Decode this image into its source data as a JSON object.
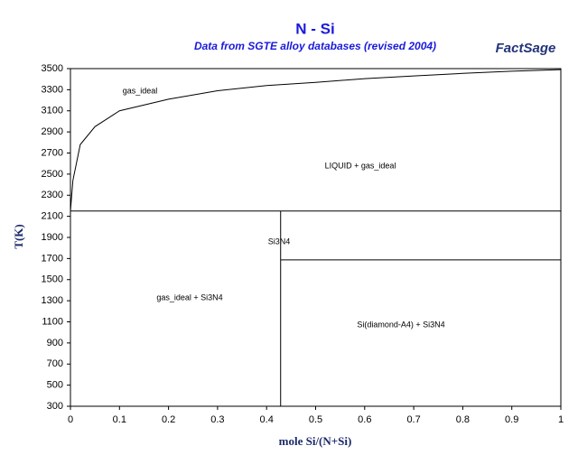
{
  "chart_data": {
    "type": "line",
    "title": "N - Si",
    "subtitle": "Data from SGTE alloy databases (revised 2004)",
    "logo": "FactSage",
    "xlabel": "mole Si/(N+Si)",
    "ylabel": "T(K)",
    "xlim": [
      0,
      1
    ],
    "xticks": [
      0,
      0.1,
      0.2,
      0.3,
      0.4,
      0.5,
      0.6,
      0.7,
      0.8,
      0.9,
      1
    ],
    "ylim": [
      300,
      3500
    ],
    "yticks": [
      300,
      500,
      700,
      900,
      1100,
      1300,
      1500,
      1700,
      1900,
      2100,
      2300,
      2500,
      2700,
      2900,
      3100,
      3300,
      3500
    ],
    "annotations": [
      "gas_ideal",
      "LIQUID + gas_ideal",
      "Si3N4",
      "gas_ideal + Si3N4",
      "Si(diamond-A4) + Si3N4"
    ],
    "series": [
      {
        "color": "#000000",
        "x": [
          0,
          0.005,
          0.02,
          0.05,
          0.1,
          0.2,
          0.3,
          0.4,
          0.5,
          0.6,
          0.7,
          0.8,
          0.9,
          1
        ],
        "values": [
          2150,
          2440,
          2780,
          2950,
          3100,
          3210,
          3290,
          3340,
          3370,
          3405,
          3430,
          3455,
          3475,
          3490
        ]
      },
      {
        "color": "#000000",
        "x": [
          0,
          1
        ],
        "values": [
          2150,
          2150
        ]
      },
      {
        "color": "#000000",
        "x": [
          0.4286,
          0.4286
        ],
        "values": [
          300,
          2150
        ]
      },
      {
        "color": "#000000",
        "x": [
          0.4286,
          1
        ],
        "values": [
          1687,
          1687
        ]
      }
    ]
  }
}
